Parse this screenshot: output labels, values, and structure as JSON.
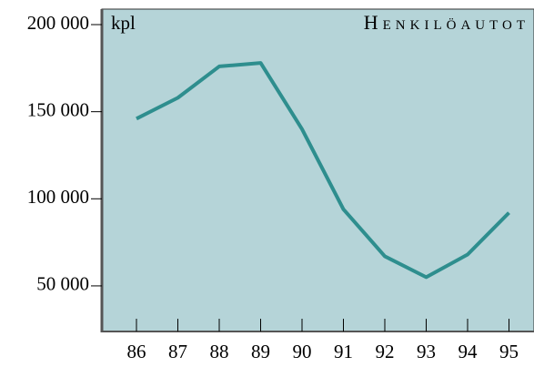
{
  "chart_data": {
    "type": "line",
    "title": "Henkilöautot",
    "y_label": "kpl",
    "categories": [
      "86",
      "87",
      "88",
      "89",
      "90",
      "91",
      "92",
      "93",
      "94",
      "95"
    ],
    "values": [
      146000,
      158000,
      176000,
      178000,
      140000,
      94000,
      67000,
      55000,
      68000,
      92000
    ],
    "color": "#2e8e8e",
    "background": "#b5d4d8",
    "ylim": [
      23300,
      208900
    ],
    "yticks": [
      {
        "value": 50000,
        "label": "50 000"
      },
      {
        "value": 100000,
        "label": "100 000"
      },
      {
        "value": 150000,
        "label": "150 000"
      },
      {
        "value": 200000,
        "label": "200 000"
      }
    ]
  }
}
